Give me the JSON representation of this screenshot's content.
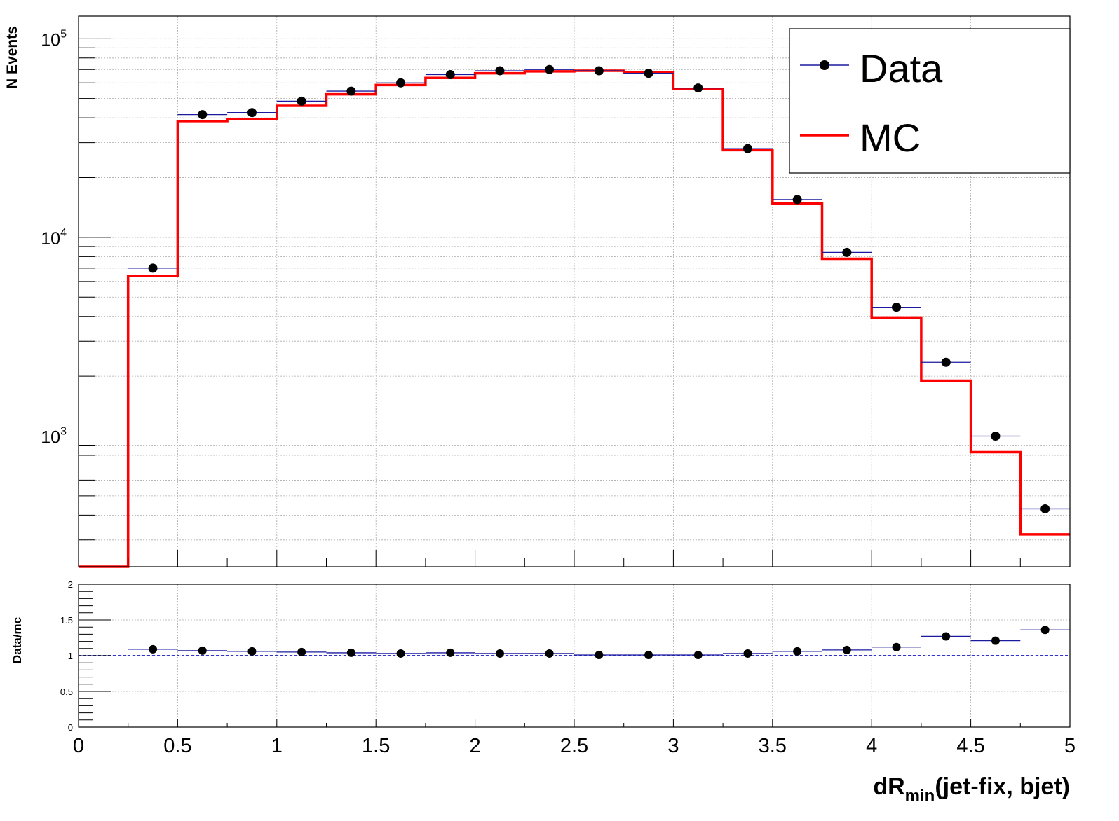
{
  "chart_data": [
    {
      "type": "line",
      "panel": "main",
      "ylabel": "N Events",
      "yscale": "log",
      "ylim": [
        220,
        130000
      ],
      "xlim": [
        0,
        5
      ],
      "grid": true,
      "legend_position": "top-right",
      "y_tick_labels": [
        "10",
        "10",
        "10"
      ],
      "y_tick_exponents": [
        "3",
        "4",
        "5"
      ],
      "bin_edges": [
        0,
        0.25,
        0.5,
        0.75,
        1.0,
        1.25,
        1.5,
        1.75,
        2.0,
        2.25,
        2.5,
        2.75,
        3.0,
        3.25,
        3.5,
        3.75,
        4.0,
        4.25,
        4.5,
        4.75,
        5.0
      ],
      "series": [
        {
          "name": "Data",
          "style": "markers",
          "color": "#000000",
          "error_color": "#1a1aa0",
          "x": [
            0.375,
            0.625,
            0.875,
            1.125,
            1.375,
            1.625,
            1.875,
            2.125,
            2.375,
            2.625,
            2.875,
            3.125,
            3.375,
            3.625,
            3.875,
            4.125,
            4.375,
            4.625,
            4.875
          ],
          "values": [
            7000,
            41500,
            42500,
            48500,
            54500,
            60000,
            66000,
            69000,
            70000,
            69000,
            67000,
            56500,
            28000,
            15500,
            8400,
            4450,
            2350,
            1000,
            430
          ]
        },
        {
          "name": "MC",
          "style": "step",
          "color": "#ff0000",
          "values": [
            220,
            6400,
            38500,
            39500,
            46000,
            52500,
            58500,
            63500,
            67000,
            68500,
            69000,
            67500,
            56000,
            27500,
            14800,
            7800,
            3950,
            1900,
            830,
            320
          ]
        }
      ]
    },
    {
      "type": "scatter",
      "panel": "ratio",
      "ylabel": "Data/mc",
      "ylim": [
        0,
        2
      ],
      "xlim": [
        0,
        5
      ],
      "grid": true,
      "xlabel_main": "dR",
      "xlabel_sub": "min",
      "xlabel_rest": "(jet-fix, bjet)",
      "x_ticks": [
        "0",
        "0.5",
        "1",
        "1.5",
        "2",
        "2.5",
        "3",
        "3.5",
        "4",
        "4.5",
        "5"
      ],
      "y_ticks": [
        "0",
        "0.5",
        "1",
        "1.5",
        "2"
      ],
      "reference_line": 1,
      "reference_color": "#3333cc",
      "series": [
        {
          "name": "Data/mc",
          "color": "#000000",
          "x": [
            0.375,
            0.625,
            0.875,
            1.125,
            1.375,
            1.625,
            1.875,
            2.125,
            2.375,
            2.625,
            2.875,
            3.125,
            3.375,
            3.625,
            3.875,
            4.125,
            4.375,
            4.625,
            4.875
          ],
          "values": [
            1.09,
            1.07,
            1.06,
            1.05,
            1.04,
            1.03,
            1.04,
            1.03,
            1.03,
            1.01,
            1.01,
            1.01,
            1.03,
            1.06,
            1.08,
            1.12,
            1.27,
            1.21,
            1.36
          ]
        }
      ]
    }
  ]
}
